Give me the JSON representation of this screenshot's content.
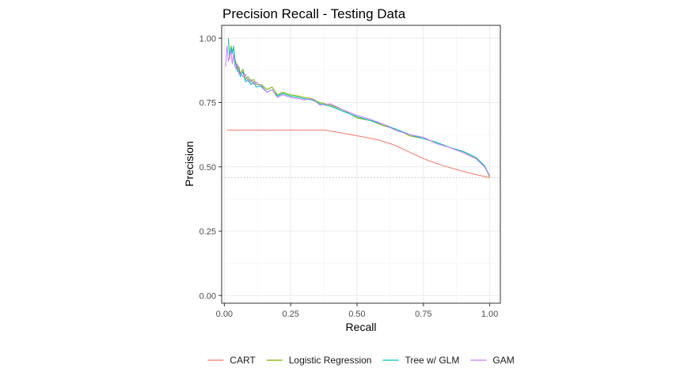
{
  "chart_data": {
    "type": "line",
    "title": "Precision Recall - Testing Data",
    "xlabel": "Recall",
    "ylabel": "Precision",
    "xlim": [
      -0.01,
      1.04
    ],
    "ylim": [
      -0.03,
      1.05
    ],
    "x_ticks": [
      0.0,
      0.25,
      0.5,
      0.75,
      1.0
    ],
    "x_tick_labels": [
      "0.00",
      "0.25",
      "0.50",
      "0.75",
      "1.00"
    ],
    "y_ticks": [
      0.0,
      0.25,
      0.5,
      0.75,
      1.0
    ],
    "y_tick_labels": [
      "0.00",
      "0.25",
      "0.50",
      "0.75",
      "1.00"
    ],
    "grid": true,
    "legend_position": "bottom",
    "baseline": {
      "y": 0.458,
      "style": "dotted",
      "color": "#bfbfbf"
    },
    "series": [
      {
        "name": "CART",
        "color": "#F8766D",
        "x": [
          0.01,
          0.1,
          0.2,
          0.3,
          0.38,
          0.45,
          0.52,
          0.58,
          0.64,
          0.7,
          0.76,
          0.82,
          0.88,
          0.94,
          1.0
        ],
        "y": [
          0.643,
          0.643,
          0.643,
          0.643,
          0.643,
          0.63,
          0.617,
          0.605,
          0.585,
          0.556,
          0.528,
          0.506,
          0.488,
          0.472,
          0.458
        ]
      },
      {
        "name": "Logistic Regression",
        "color": "#7CAE00",
        "x": [
          0.015,
          0.02,
          0.025,
          0.03,
          0.035,
          0.04,
          0.045,
          0.05,
          0.055,
          0.06,
          0.07,
          0.08,
          0.09,
          0.1,
          0.11,
          0.12,
          0.14,
          0.16,
          0.18,
          0.2,
          0.22,
          0.25,
          0.28,
          0.3,
          0.33,
          0.36,
          0.4,
          0.45,
          0.5,
          0.55,
          0.6,
          0.65,
          0.7,
          0.75,
          0.8,
          0.85,
          0.9,
          0.95,
          0.98,
          1.0
        ],
        "y": [
          1.0,
          0.92,
          0.97,
          0.95,
          0.96,
          0.92,
          0.9,
          0.88,
          0.89,
          0.86,
          0.88,
          0.84,
          0.85,
          0.83,
          0.84,
          0.82,
          0.82,
          0.8,
          0.81,
          0.78,
          0.79,
          0.78,
          0.775,
          0.77,
          0.765,
          0.75,
          0.74,
          0.72,
          0.69,
          0.68,
          0.66,
          0.645,
          0.62,
          0.61,
          0.595,
          0.575,
          0.56,
          0.535,
          0.505,
          0.46
        ]
      },
      {
        "name": "Tree w/ GLM",
        "color": "#00BFC4",
        "x": [
          0.015,
          0.02,
          0.025,
          0.03,
          0.035,
          0.04,
          0.045,
          0.05,
          0.055,
          0.06,
          0.07,
          0.08,
          0.09,
          0.1,
          0.11,
          0.12,
          0.14,
          0.16,
          0.18,
          0.2,
          0.22,
          0.25,
          0.28,
          0.3,
          0.33,
          0.36,
          0.4,
          0.45,
          0.5,
          0.55,
          0.6,
          0.65,
          0.7,
          0.75,
          0.8,
          0.85,
          0.9,
          0.95,
          0.98,
          1.0
        ],
        "y": [
          1.0,
          0.93,
          0.96,
          0.94,
          0.97,
          0.91,
          0.89,
          0.87,
          0.88,
          0.85,
          0.87,
          0.83,
          0.84,
          0.82,
          0.83,
          0.81,
          0.815,
          0.79,
          0.8,
          0.775,
          0.785,
          0.775,
          0.77,
          0.765,
          0.76,
          0.745,
          0.735,
          0.715,
          0.695,
          0.68,
          0.665,
          0.645,
          0.625,
          0.61,
          0.595,
          0.575,
          0.56,
          0.535,
          0.505,
          0.465
        ]
      },
      {
        "name": "GAM",
        "color": "#C77CFF",
        "x": [
          0.005,
          0.01,
          0.015,
          0.02,
          0.025,
          0.03,
          0.035,
          0.04,
          0.045,
          0.05,
          0.055,
          0.06,
          0.07,
          0.08,
          0.09,
          0.1,
          0.11,
          0.12,
          0.14,
          0.16,
          0.18,
          0.2,
          0.22,
          0.25,
          0.28,
          0.3,
          0.33,
          0.36,
          0.4,
          0.45,
          0.5,
          0.55,
          0.6,
          0.65,
          0.7,
          0.75,
          0.8,
          0.85,
          0.9,
          0.95,
          0.98,
          1.0
        ],
        "y": [
          0.89,
          0.97,
          0.91,
          0.93,
          0.95,
          0.9,
          0.94,
          0.89,
          0.88,
          0.9,
          0.86,
          0.87,
          0.85,
          0.86,
          0.83,
          0.84,
          0.82,
          0.83,
          0.81,
          0.79,
          0.8,
          0.77,
          0.78,
          0.77,
          0.765,
          0.76,
          0.765,
          0.74,
          0.745,
          0.72,
          0.7,
          0.685,
          0.665,
          0.64,
          0.625,
          0.615,
          0.59,
          0.575,
          0.555,
          0.53,
          0.5,
          0.465
        ]
      }
    ]
  }
}
